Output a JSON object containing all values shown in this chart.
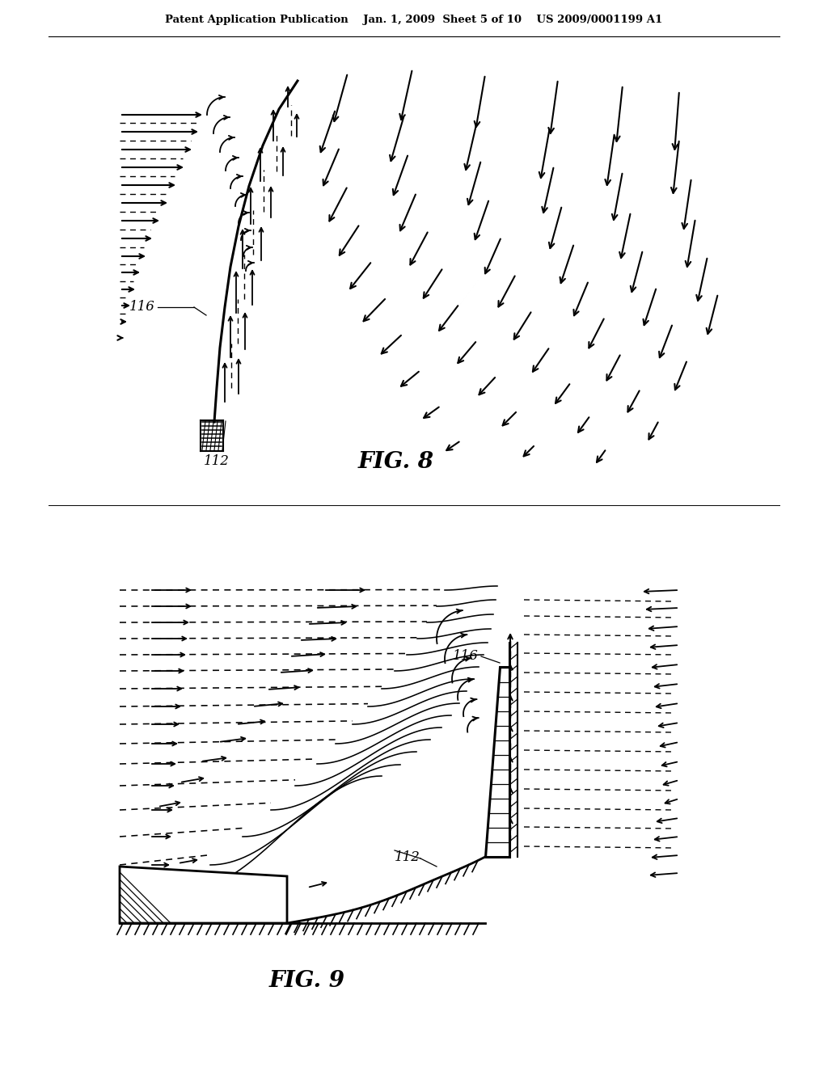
{
  "bg_color": "#ffffff",
  "header": "Patent Application Publication    Jan. 1, 2009  Sheet 5 of 10    US 2009/0001199 A1",
  "fig8_caption": "FIG. 8",
  "fig9_caption": "FIG. 9",
  "lbl_116_8": "116",
  "lbl_112_8": "112",
  "lbl_116_9": "116",
  "lbl_112_9": "112"
}
